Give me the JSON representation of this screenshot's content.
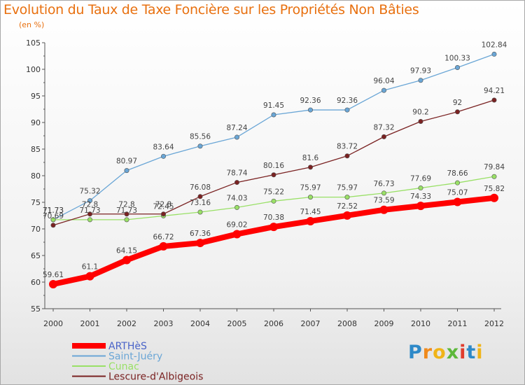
{
  "chart_data": {
    "type": "line",
    "title": "Evolution du Taux de Taxe Foncière sur les Propriétés Non Bâties",
    "subtitle": "(en %)",
    "xlabel": "",
    "ylabel": "",
    "ylim": [
      55,
      105
    ],
    "yticks": [
      55,
      60,
      65,
      70,
      75,
      80,
      85,
      90,
      95,
      100,
      105
    ],
    "x": [
      "2000",
      "2001",
      "2002",
      "2003",
      "2004",
      "2005",
      "2006",
      "2007",
      "2008",
      "2009",
      "2010",
      "2011",
      "2012"
    ],
    "grid": false,
    "legend_position": "bottom-left",
    "series": [
      {
        "name": "ARTHèS",
        "color": "#ff0000",
        "values": [
          59.61,
          61.1,
          64.15,
          66.72,
          67.36,
          69.02,
          70.38,
          71.45,
          72.52,
          73.59,
          74.33,
          75.07,
          75.82
        ],
        "labels": [
          "59.61",
          "61.1",
          "64.15",
          "66.72",
          "67.36",
          "69.02",
          "70.38",
          "71.45",
          "72.52",
          "73.59",
          "74.33",
          "75.07",
          "75.82"
        ]
      },
      {
        "name": "Saint-Juéry",
        "color": "#6aa6d6",
        "values": [
          71.73,
          75.32,
          80.97,
          83.64,
          85.56,
          87.24,
          91.45,
          92.36,
          92.36,
          96.04,
          97.93,
          100.33,
          102.84
        ],
        "labels": [
          "71.73",
          "75.32",
          "80.97",
          "83.64",
          "85.56",
          "87.24",
          "91.45",
          "92.36",
          "92.36",
          "96.04",
          "97.93",
          "100.33",
          "102.84"
        ]
      },
      {
        "name": "Cunac",
        "color": "#99e066",
        "values": [
          71.73,
          71.73,
          71.73,
          72.45,
          73.16,
          74.03,
          75.22,
          75.97,
          75.97,
          76.73,
          77.69,
          78.66,
          79.84
        ],
        "labels": [
          "71.73",
          "71.73",
          "71.73",
          "72.45",
          "73.16",
          "74.03",
          "75.22",
          "75.97",
          "75.97",
          "76.73",
          "77.69",
          "78.66",
          "79.84"
        ]
      },
      {
        "name": "Lescure-d'Albigeois",
        "color": "#7a2222",
        "values": [
          70.69,
          72.8,
          72.8,
          72.8,
          76.08,
          78.74,
          80.16,
          81.6,
          83.72,
          87.32,
          90.2,
          92,
          94.21
        ],
        "labels": [
          "70.69",
          "72.8",
          "72.8",
          "72.8",
          "76.08",
          "78.74",
          "80.16",
          "81.6",
          "83.72",
          "87.32",
          "90.2",
          "92",
          "94.21"
        ]
      }
    ]
  },
  "logo": {
    "text": "Proxiti"
  }
}
